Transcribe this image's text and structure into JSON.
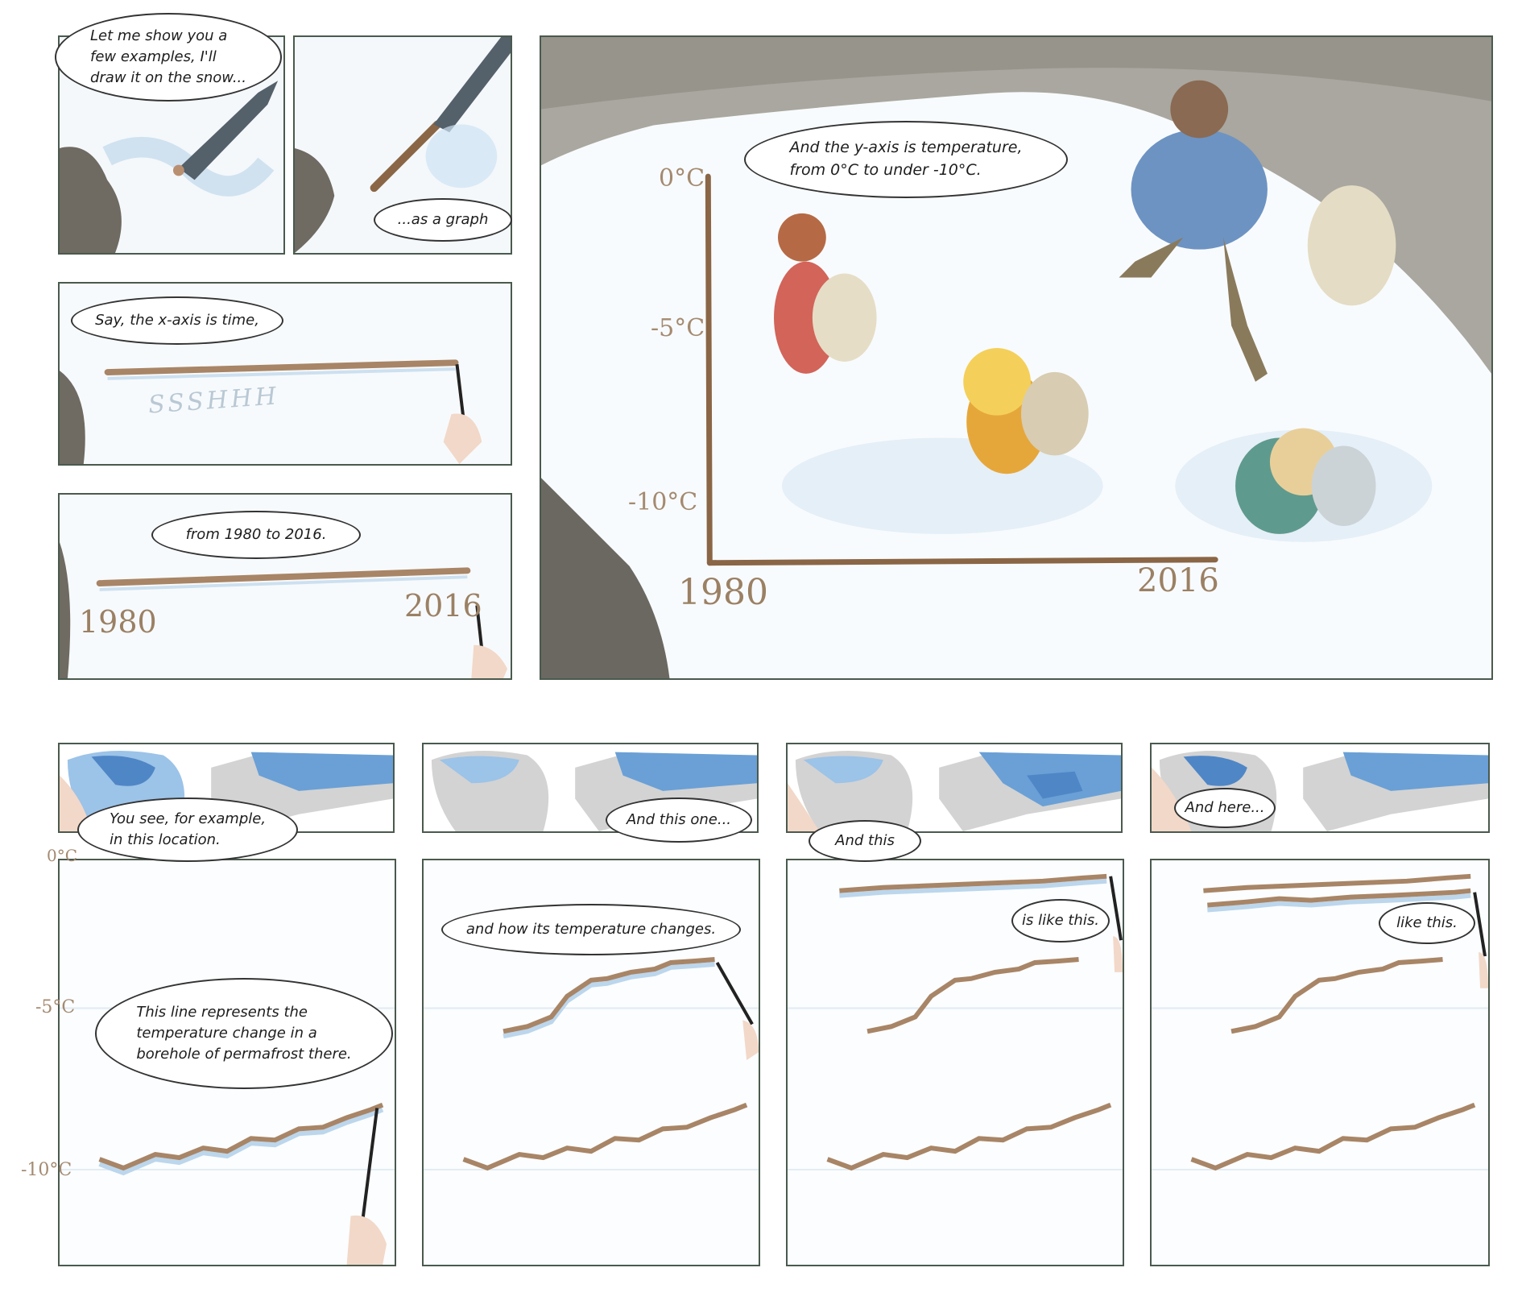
{
  "bubbles": {
    "p1": "Let me show you a\nfew examples, I'll\ndraw it on the snow...",
    "p2": "...as a graph",
    "p3": "Say, the x-axis is time,",
    "p4": "from 1980 to 2016.",
    "p5": "And the y-axis is temperature,\nfrom 0°C to under -10°C.",
    "p6": "You see, for example,\nin this location.",
    "p7": "And this one...",
    "p8": "And this",
    "p9": "And here...",
    "p10": "This line represents the\ntemperature change in a\nborehole of permafrost there.",
    "p11": "and how its temperature changes.",
    "p12": "is like this.",
    "p13": "like this."
  },
  "snow_writing": {
    "sound": "SSSHHH",
    "year_start": "1980",
    "year_end": "2016"
  },
  "axis_labels": {
    "y_top": "0°C",
    "y_mid": "-5°C",
    "y_bottom": "-10°C",
    "x_start": "1980",
    "x_end": "2016"
  },
  "colors": {
    "panel_border": "#4a5a4e",
    "snow_line": "#a88566",
    "snow_shadow": "#9fc2e0",
    "map_land": "#d3d3d3",
    "map_permafrost_dark": "#4f86c6",
    "map_permafrost_light": "#9cc3e8"
  }
}
